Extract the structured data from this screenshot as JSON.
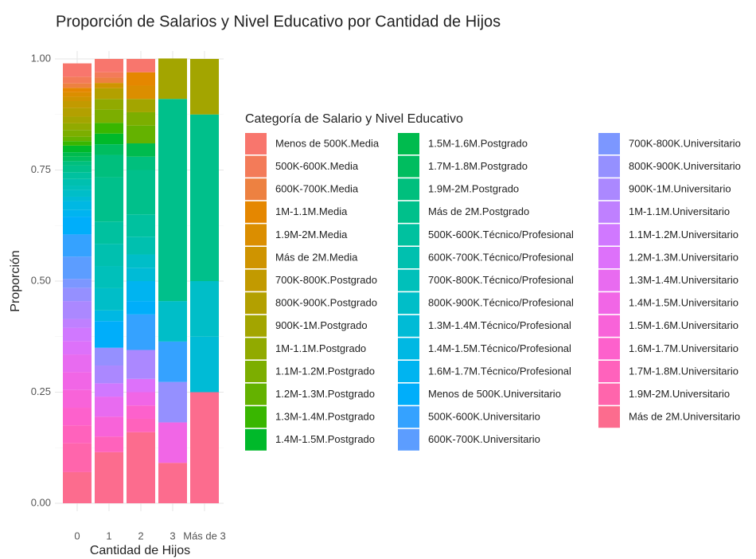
{
  "chart_data": {
    "type": "stacked_bar",
    "title": "Proporción de Salarios y Nivel Educativo por Cantidad de Hijos",
    "x_label": "Cantidad de Hijos",
    "y_label": "Proporción",
    "legend_title": "Categoría de Salario y Nivel Educativo",
    "categories": [
      "0",
      "1",
      "2",
      "3",
      "Más de 3"
    ],
    "ylim": [
      0,
      1
    ],
    "yticks": [
      {
        "value": 0,
        "label": "0.00"
      },
      {
        "value": 0.25,
        "label": "0.25"
      },
      {
        "value": 0.5,
        "label": "0.50"
      },
      {
        "value": 0.75,
        "label": "0.75"
      },
      {
        "value": 1,
        "label": "1.00"
      }
    ],
    "grid": true,
    "legend": "right",
    "series": [
      {
        "name": "Menos de 500K.Media",
        "color": "#F8766D",
        "values": [
          0.03,
          0.03,
          0.03,
          0,
          0
        ]
      },
      {
        "name": "500K-600K.Media",
        "color": "#F37B59",
        "values": [
          0.015,
          0.012,
          0,
          0,
          0
        ]
      },
      {
        "name": "600K-700K.Media",
        "color": "#ED8141",
        "values": [
          0.01,
          0.012,
          0,
          0,
          0
        ]
      },
      {
        "name": "1M-1.1M.Media",
        "color": "#E58700",
        "values": [
          0.01,
          0,
          0.03,
          0,
          0
        ]
      },
      {
        "name": "1.9M-2M.Media",
        "color": "#DB8E00",
        "values": [
          0.01,
          0,
          0.03,
          0,
          0
        ]
      },
      {
        "name": "Más de 2M.Media",
        "color": "#CF9400",
        "values": [
          0.01,
          0.012,
          0,
          0,
          0
        ]
      },
      {
        "name": "700K-800K.Postgrado",
        "color": "#C29A00",
        "values": [
          0.015,
          0,
          0,
          0,
          0
        ]
      },
      {
        "name": "800K-900K.Postgrado",
        "color": "#B3A000",
        "values": [
          0.02,
          0.024,
          0,
          0,
          0
        ]
      },
      {
        "name": "900K-1M.Postgrado",
        "color": "#A3A500",
        "values": [
          0.015,
          0,
          0.03,
          0.091,
          0.125
        ]
      },
      {
        "name": "1M-1.1M.Postgrado",
        "color": "#91AA00",
        "values": [
          0.015,
          0.024,
          0,
          0,
          0
        ]
      },
      {
        "name": "1.1M-1.2M.Postgrado",
        "color": "#7CAE00",
        "values": [
          0.015,
          0.03,
          0.03,
          0,
          0
        ]
      },
      {
        "name": "1.2M-1.3M.Postgrado",
        "color": "#64B200",
        "values": [
          0.01,
          0,
          0.04,
          0,
          0
        ]
      },
      {
        "name": "1.3M-1.4M.Postgrado",
        "color": "#39B600",
        "values": [
          0.01,
          0.024,
          0,
          0,
          0
        ]
      },
      {
        "name": "1.4M-1.5M.Postgrado",
        "color": "#00B92A",
        "values": [
          0.015,
          0.024,
          0,
          0,
          0
        ]
      },
      {
        "name": "1.5M-1.6M.Postgrado",
        "color": "#00BB4E",
        "values": [
          0.01,
          0,
          0.03,
          0,
          0
        ]
      },
      {
        "name": "1.7M-1.8M.Postgrado",
        "color": "#00BD5F",
        "values": [
          0.01,
          0.024,
          0,
          0,
          0
        ]
      },
      {
        "name": "1.9M-2M.Postgrado",
        "color": "#00BF7D",
        "values": [
          0.01,
          0.05,
          0.03,
          0,
          0
        ]
      },
      {
        "name": "Más de 2M.Postgrado",
        "color": "#00C08B",
        "values": [
          0.015,
          0.1,
          0.1,
          0.455,
          0.375
        ]
      },
      {
        "name": "500K-600K.Técnico/Profesional",
        "color": "#00C19F",
        "values": [
          0.015,
          0.05,
          0.05,
          0,
          0
        ]
      },
      {
        "name": "600K-700K.Técnico/Profesional",
        "color": "#00C0AF",
        "values": [
          0.015,
          0.05,
          0.04,
          0,
          0
        ]
      },
      {
        "name": "700K-800K.Técnico/Profesional",
        "color": "#00C0BA",
        "values": [
          0.01,
          0.05,
          0,
          0,
          0
        ]
      },
      {
        "name": "800K-900K.Técnico/Profesional",
        "color": "#00BEC8",
        "values": [
          0.015,
          0.05,
          0.03,
          0.091,
          0.125
        ]
      },
      {
        "name": "1.3M-1.4M.Técnico/Profesional",
        "color": "#00BBD6",
        "values": [
          0.01,
          0,
          0.03,
          0,
          0.125
        ]
      },
      {
        "name": "1.4M-1.5M.Técnico/Profesional",
        "color": "#00B8E3",
        "values": [
          0.02,
          0.024,
          0,
          0,
          0
        ]
      },
      {
        "name": "1.6M-1.7M.Técnico/Profesional",
        "color": "#00B4F0",
        "values": [
          0.015,
          0,
          0.045,
          0,
          0
        ]
      },
      {
        "name": "Menos de 500K.Universitario",
        "color": "#00AEFA",
        "values": [
          0.04,
          0.06,
          0.03,
          0,
          0
        ]
      },
      {
        "name": "500K-600K.Universitario",
        "color": "#35A2FF",
        "values": [
          0.05,
          0,
          0.08,
          0.091,
          0
        ]
      },
      {
        "name": "600K-700K.Universitario",
        "color": "#5C9DFF",
        "values": [
          0.05,
          0,
          0,
          0,
          0
        ]
      },
      {
        "name": "700K-800K.Universitario",
        "color": "#7C97FF",
        "values": [
          0.02,
          0,
          0,
          0,
          0
        ]
      },
      {
        "name": "800K-900K.Universitario",
        "color": "#9590FF",
        "values": [
          0.03,
          0.04,
          0,
          0.091,
          0
        ]
      },
      {
        "name": "900K-1M.Universitario",
        "color": "#AB88FF",
        "values": [
          0.04,
          0.04,
          0.065,
          0,
          0
        ]
      },
      {
        "name": "1M-1.1M.Universitario",
        "color": "#BF80FF",
        "values": [
          0.02,
          0,
          0,
          0,
          0
        ]
      },
      {
        "name": "1.1M-1.2M.Universitario",
        "color": "#D078FF",
        "values": [
          0.03,
          0.03,
          0,
          0,
          0
        ]
      },
      {
        "name": "1.2M-1.3M.Universitario",
        "color": "#DD71FA",
        "values": [
          0.03,
          0,
          0.03,
          0,
          0
        ]
      },
      {
        "name": "1.3M-1.4M.Universitario",
        "color": "#E86BF0",
        "values": [
          0.04,
          0.045,
          0,
          0,
          0
        ]
      },
      {
        "name": "1.4M-1.5M.Universitario",
        "color": "#F166E6",
        "values": [
          0.04,
          0,
          0.03,
          0.091,
          0
        ]
      },
      {
        "name": "1.5M-1.6M.Universitario",
        "color": "#F863D9",
        "values": [
          0.04,
          0.045,
          0,
          0,
          0
        ]
      },
      {
        "name": "1.6M-1.7M.Universitario",
        "color": "#FD61CC",
        "values": [
          0.04,
          0,
          0.03,
          0,
          0
        ]
      },
      {
        "name": "1.7M-1.8M.Universitario",
        "color": "#FF62BC",
        "values": [
          0.04,
          0.035,
          0.03,
          0,
          0
        ]
      },
      {
        "name": "1.9M-2M.Universitario",
        "color": "#FF65AC",
        "values": [
          0.065,
          0,
          0,
          0,
          0
        ]
      },
      {
        "name": "Más de 2M.Universitario",
        "color": "#FC6C8E",
        "values": [
          0.07,
          0.115,
          0.16,
          0.091,
          0.25
        ]
      }
    ]
  }
}
